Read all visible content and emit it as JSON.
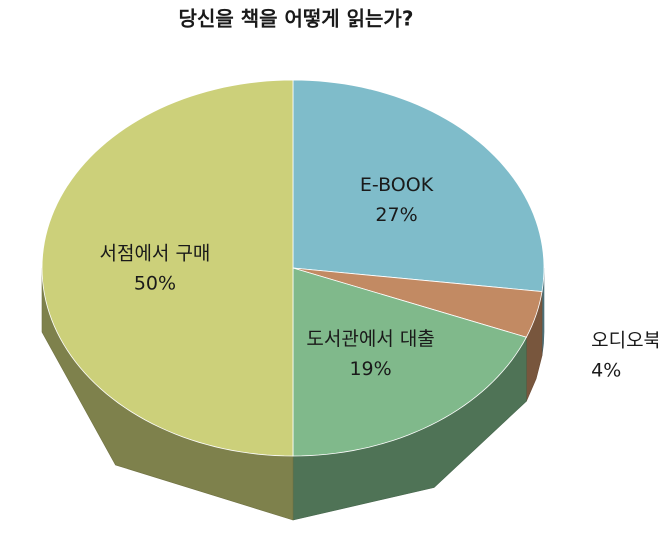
{
  "chart_data": {
    "type": "pie3d",
    "title": "당신을 책을 어떻게 읽는가?",
    "categories": [
      "E-BOOK",
      "오디오북",
      "도서관에서 대출",
      "서점에서 구매"
    ],
    "values": [
      27,
      4,
      19,
      50
    ],
    "value_labels": [
      "27%",
      "4%",
      "19%",
      "50%"
    ],
    "colors": [
      "#7fbcca",
      "#c28a63",
      "#80b98b",
      "#ccd07a"
    ]
  }
}
